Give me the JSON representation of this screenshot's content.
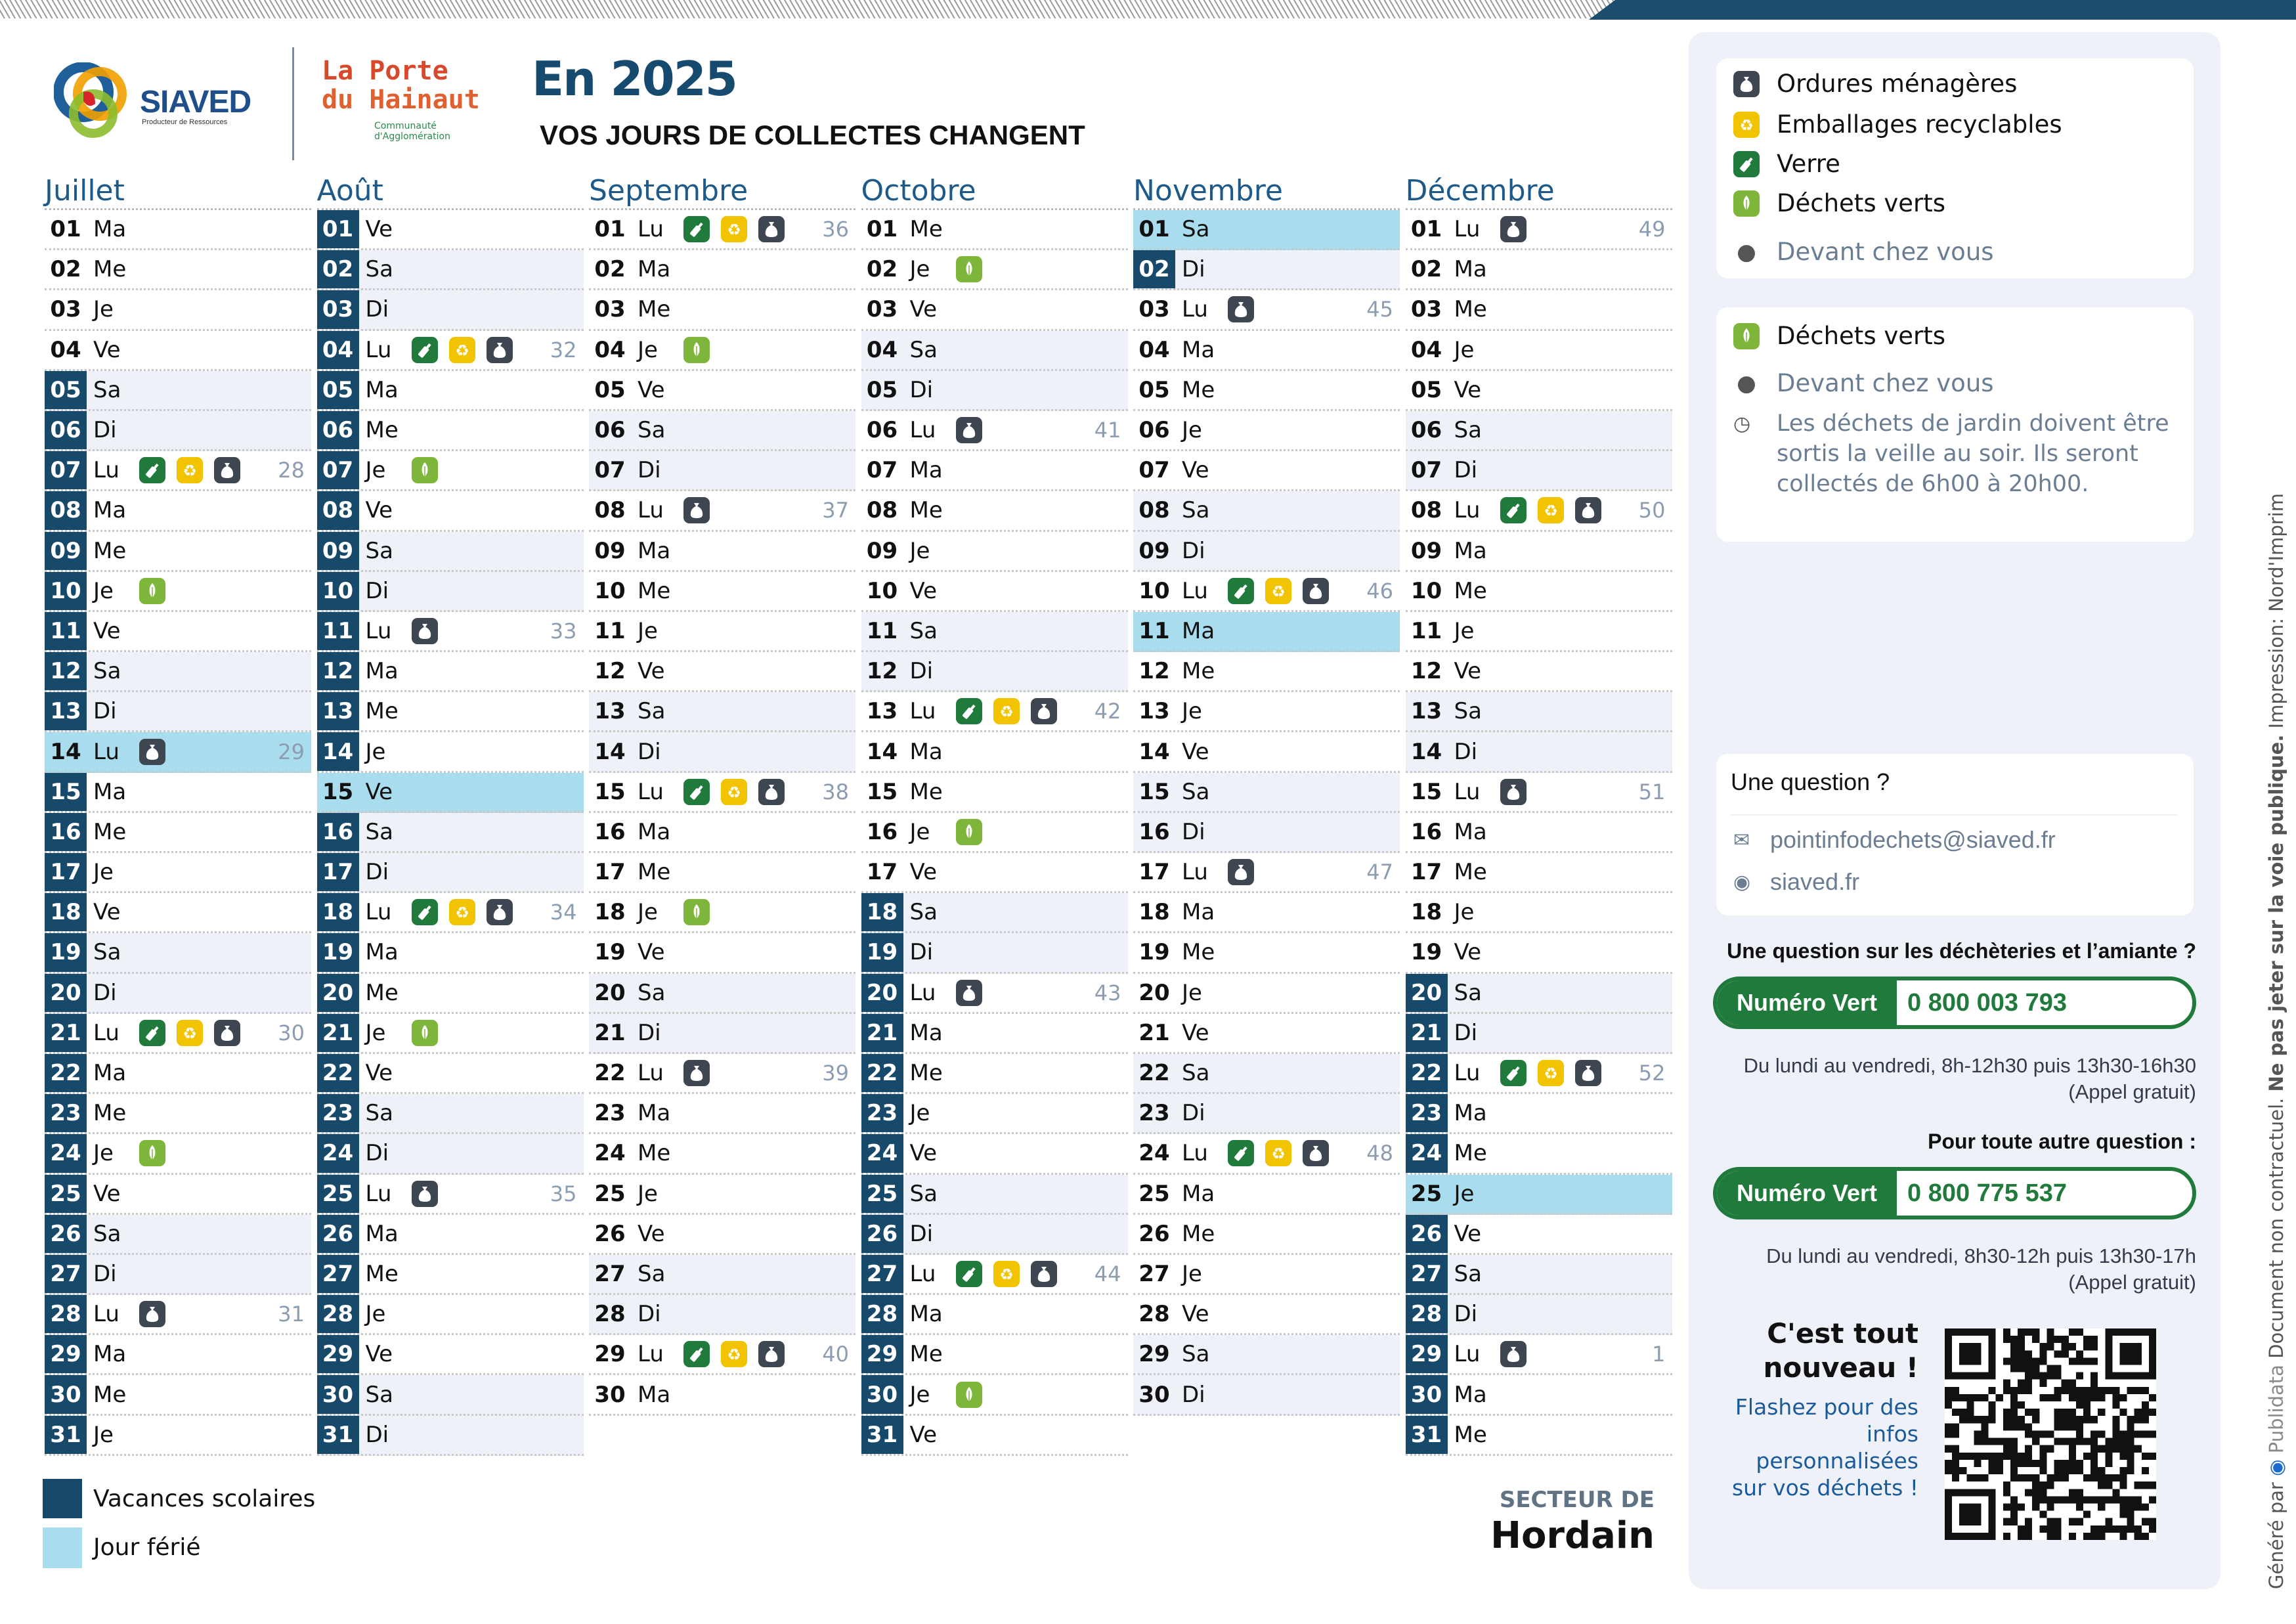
{
  "header": {
    "siaved_logo": {
      "name": "SIAVED",
      "tagline": "Producteur de Ressources"
    },
    "agglo_logo": {
      "line1": "La Porte",
      "line2": "du Hainaut",
      "sub1": "Communauté",
      "sub2": "d'Agglomération"
    },
    "title": "En 2025",
    "subtitle": "VOS JOURS DE COLLECTES CHANGENT"
  },
  "colors": {
    "vacation": "#17496b",
    "holiday": "#a9dcec",
    "weekend": "#eef2f8",
    "verre": "#1f7a3c",
    "emballages": "#f2c300",
    "ordures": "#3e4652",
    "dechets_verts": "#7db63a",
    "month_title": "#1d5a8a"
  },
  "icons": {
    "ordures": "bag-icon",
    "emballages": "recycle-icon",
    "verre": "bottle-icon",
    "dechets_verts": "leaf-icon",
    "location": "map-pin-icon",
    "clock": "clock-icon",
    "mail": "mail-icon",
    "web": "globe-icon"
  },
  "months": [
    {
      "name": "Juillet",
      "days": [
        {
          "d": "01",
          "w": "Ma"
        },
        {
          "d": "02",
          "w": "Me"
        },
        {
          "d": "03",
          "w": "Je"
        },
        {
          "d": "04",
          "w": "Ve"
        },
        {
          "d": "05",
          "w": "Sa",
          "v": 1
        },
        {
          "d": "06",
          "w": "Di",
          "v": 1
        },
        {
          "d": "07",
          "w": "Lu",
          "v": 1,
          "c": [
            "verre",
            "emballages",
            "ordures"
          ],
          "wk": "28"
        },
        {
          "d": "08",
          "w": "Ma",
          "v": 1
        },
        {
          "d": "09",
          "w": "Me",
          "v": 1
        },
        {
          "d": "10",
          "w": "Je",
          "v": 1,
          "c": [
            "dechets_verts"
          ]
        },
        {
          "d": "11",
          "w": "Ve",
          "v": 1
        },
        {
          "d": "12",
          "w": "Sa",
          "v": 1
        },
        {
          "d": "13",
          "w": "Di",
          "v": 1
        },
        {
          "d": "14",
          "w": "Lu",
          "h": 1,
          "c": [
            "ordures"
          ],
          "wk": "29"
        },
        {
          "d": "15",
          "w": "Ma",
          "v": 1
        },
        {
          "d": "16",
          "w": "Me",
          "v": 1
        },
        {
          "d": "17",
          "w": "Je",
          "v": 1
        },
        {
          "d": "18",
          "w": "Ve",
          "v": 1
        },
        {
          "d": "19",
          "w": "Sa",
          "v": 1
        },
        {
          "d": "20",
          "w": "Di",
          "v": 1
        },
        {
          "d": "21",
          "w": "Lu",
          "v": 1,
          "c": [
            "verre",
            "emballages",
            "ordures"
          ],
          "wk": "30"
        },
        {
          "d": "22",
          "w": "Ma",
          "v": 1
        },
        {
          "d": "23",
          "w": "Me",
          "v": 1
        },
        {
          "d": "24",
          "w": "Je",
          "v": 1,
          "c": [
            "dechets_verts"
          ]
        },
        {
          "d": "25",
          "w": "Ve",
          "v": 1
        },
        {
          "d": "26",
          "w": "Sa",
          "v": 1
        },
        {
          "d": "27",
          "w": "Di",
          "v": 1
        },
        {
          "d": "28",
          "w": "Lu",
          "v": 1,
          "c": [
            "ordures"
          ],
          "wk": "31"
        },
        {
          "d": "29",
          "w": "Ma",
          "v": 1
        },
        {
          "d": "30",
          "w": "Me",
          "v": 1
        },
        {
          "d": "31",
          "w": "Je",
          "v": 1
        }
      ]
    },
    {
      "name": "Août",
      "days": [
        {
          "d": "01",
          "w": "Ve",
          "v": 1
        },
        {
          "d": "02",
          "w": "Sa",
          "v": 1
        },
        {
          "d": "03",
          "w": "Di",
          "v": 1
        },
        {
          "d": "04",
          "w": "Lu",
          "v": 1,
          "c": [
            "verre",
            "emballages",
            "ordures"
          ],
          "wk": "32"
        },
        {
          "d": "05",
          "w": "Ma",
          "v": 1
        },
        {
          "d": "06",
          "w": "Me",
          "v": 1
        },
        {
          "d": "07",
          "w": "Je",
          "v": 1,
          "c": [
            "dechets_verts"
          ]
        },
        {
          "d": "08",
          "w": "Ve",
          "v": 1
        },
        {
          "d": "09",
          "w": "Sa",
          "v": 1
        },
        {
          "d": "10",
          "w": "Di",
          "v": 1
        },
        {
          "d": "11",
          "w": "Lu",
          "v": 1,
          "c": [
            "ordures"
          ],
          "wk": "33"
        },
        {
          "d": "12",
          "w": "Ma",
          "v": 1
        },
        {
          "d": "13",
          "w": "Me",
          "v": 1
        },
        {
          "d": "14",
          "w": "Je",
          "v": 1
        },
        {
          "d": "15",
          "w": "Ve",
          "h": 1
        },
        {
          "d": "16",
          "w": "Sa",
          "v": 1
        },
        {
          "d": "17",
          "w": "Di",
          "v": 1
        },
        {
          "d": "18",
          "w": "Lu",
          "v": 1,
          "c": [
            "verre",
            "emballages",
            "ordures"
          ],
          "wk": "34"
        },
        {
          "d": "19",
          "w": "Ma",
          "v": 1
        },
        {
          "d": "20",
          "w": "Me",
          "v": 1
        },
        {
          "d": "21",
          "w": "Je",
          "v": 1,
          "c": [
            "dechets_verts"
          ]
        },
        {
          "d": "22",
          "w": "Ve",
          "v": 1
        },
        {
          "d": "23",
          "w": "Sa",
          "v": 1
        },
        {
          "d": "24",
          "w": "Di",
          "v": 1
        },
        {
          "d": "25",
          "w": "Lu",
          "v": 1,
          "c": [
            "ordures"
          ],
          "wk": "35"
        },
        {
          "d": "26",
          "w": "Ma",
          "v": 1
        },
        {
          "d": "27",
          "w": "Me",
          "v": 1
        },
        {
          "d": "28",
          "w": "Je",
          "v": 1
        },
        {
          "d": "29",
          "w": "Ve",
          "v": 1
        },
        {
          "d": "30",
          "w": "Sa",
          "v": 1
        },
        {
          "d": "31",
          "w": "Di",
          "v": 1
        }
      ]
    },
    {
      "name": "Septembre",
      "days": [
        {
          "d": "01",
          "w": "Lu",
          "c": [
            "verre",
            "emballages",
            "ordures"
          ],
          "wk": "36"
        },
        {
          "d": "02",
          "w": "Ma"
        },
        {
          "d": "03",
          "w": "Me"
        },
        {
          "d": "04",
          "w": "Je",
          "c": [
            "dechets_verts"
          ]
        },
        {
          "d": "05",
          "w": "Ve"
        },
        {
          "d": "06",
          "w": "Sa"
        },
        {
          "d": "07",
          "w": "Di"
        },
        {
          "d": "08",
          "w": "Lu",
          "c": [
            "ordures"
          ],
          "wk": "37"
        },
        {
          "d": "09",
          "w": "Ma"
        },
        {
          "d": "10",
          "w": "Me"
        },
        {
          "d": "11",
          "w": "Je"
        },
        {
          "d": "12",
          "w": "Ve"
        },
        {
          "d": "13",
          "w": "Sa"
        },
        {
          "d": "14",
          "w": "Di"
        },
        {
          "d": "15",
          "w": "Lu",
          "c": [
            "verre",
            "emballages",
            "ordures"
          ],
          "wk": "38"
        },
        {
          "d": "16",
          "w": "Ma"
        },
        {
          "d": "17",
          "w": "Me"
        },
        {
          "d": "18",
          "w": "Je",
          "c": [
            "dechets_verts"
          ]
        },
        {
          "d": "19",
          "w": "Ve"
        },
        {
          "d": "20",
          "w": "Sa"
        },
        {
          "d": "21",
          "w": "Di"
        },
        {
          "d": "22",
          "w": "Lu",
          "c": [
            "ordures"
          ],
          "wk": "39"
        },
        {
          "d": "23",
          "w": "Ma"
        },
        {
          "d": "24",
          "w": "Me"
        },
        {
          "d": "25",
          "w": "Je"
        },
        {
          "d": "26",
          "w": "Ve"
        },
        {
          "d": "27",
          "w": "Sa"
        },
        {
          "d": "28",
          "w": "Di"
        },
        {
          "d": "29",
          "w": "Lu",
          "c": [
            "verre",
            "emballages",
            "ordures"
          ],
          "wk": "40"
        },
        {
          "d": "30",
          "w": "Ma"
        }
      ]
    },
    {
      "name": "Octobre",
      "days": [
        {
          "d": "01",
          "w": "Me"
        },
        {
          "d": "02",
          "w": "Je",
          "c": [
            "dechets_verts"
          ]
        },
        {
          "d": "03",
          "w": "Ve"
        },
        {
          "d": "04",
          "w": "Sa"
        },
        {
          "d": "05",
          "w": "Di"
        },
        {
          "d": "06",
          "w": "Lu",
          "c": [
            "ordures"
          ],
          "wk": "41"
        },
        {
          "d": "07",
          "w": "Ma"
        },
        {
          "d": "08",
          "w": "Me"
        },
        {
          "d": "09",
          "w": "Je"
        },
        {
          "d": "10",
          "w": "Ve"
        },
        {
          "d": "11",
          "w": "Sa"
        },
        {
          "d": "12",
          "w": "Di"
        },
        {
          "d": "13",
          "w": "Lu",
          "c": [
            "verre",
            "emballages",
            "ordures"
          ],
          "wk": "42"
        },
        {
          "d": "14",
          "w": "Ma"
        },
        {
          "d": "15",
          "w": "Me"
        },
        {
          "d": "16",
          "w": "Je",
          "c": [
            "dechets_verts"
          ]
        },
        {
          "d": "17",
          "w": "Ve"
        },
        {
          "d": "18",
          "w": "Sa",
          "v": 1
        },
        {
          "d": "19",
          "w": "Di",
          "v": 1
        },
        {
          "d": "20",
          "w": "Lu",
          "v": 1,
          "c": [
            "ordures"
          ],
          "wk": "43"
        },
        {
          "d": "21",
          "w": "Ma",
          "v": 1
        },
        {
          "d": "22",
          "w": "Me",
          "v": 1
        },
        {
          "d": "23",
          "w": "Je",
          "v": 1
        },
        {
          "d": "24",
          "w": "Ve",
          "v": 1
        },
        {
          "d": "25",
          "w": "Sa",
          "v": 1
        },
        {
          "d": "26",
          "w": "Di",
          "v": 1
        },
        {
          "d": "27",
          "w": "Lu",
          "v": 1,
          "c": [
            "verre",
            "emballages",
            "ordures"
          ],
          "wk": "44"
        },
        {
          "d": "28",
          "w": "Ma",
          "v": 1
        },
        {
          "d": "29",
          "w": "Me",
          "v": 1
        },
        {
          "d": "30",
          "w": "Je",
          "v": 1,
          "c": [
            "dechets_verts"
          ]
        },
        {
          "d": "31",
          "w": "Ve",
          "v": 1
        }
      ]
    },
    {
      "name": "Novembre",
      "days": [
        {
          "d": "01",
          "w": "Sa",
          "h": 1
        },
        {
          "d": "02",
          "w": "Di",
          "v": 1
        },
        {
          "d": "03",
          "w": "Lu",
          "c": [
            "ordures"
          ],
          "wk": "45"
        },
        {
          "d": "04",
          "w": "Ma"
        },
        {
          "d": "05",
          "w": "Me"
        },
        {
          "d": "06",
          "w": "Je"
        },
        {
          "d": "07",
          "w": "Ve"
        },
        {
          "d": "08",
          "w": "Sa"
        },
        {
          "d": "09",
          "w": "Di"
        },
        {
          "d": "10",
          "w": "Lu",
          "c": [
            "verre",
            "emballages",
            "ordures"
          ],
          "wk": "46"
        },
        {
          "d": "11",
          "w": "Ma",
          "h": 1
        },
        {
          "d": "12",
          "w": "Me"
        },
        {
          "d": "13",
          "w": "Je"
        },
        {
          "d": "14",
          "w": "Ve"
        },
        {
          "d": "15",
          "w": "Sa"
        },
        {
          "d": "16",
          "w": "Di"
        },
        {
          "d": "17",
          "w": "Lu",
          "c": [
            "ordures"
          ],
          "wk": "47"
        },
        {
          "d": "18",
          "w": "Ma"
        },
        {
          "d": "19",
          "w": "Me"
        },
        {
          "d": "20",
          "w": "Je"
        },
        {
          "d": "21",
          "w": "Ve"
        },
        {
          "d": "22",
          "w": "Sa"
        },
        {
          "d": "23",
          "w": "Di"
        },
        {
          "d": "24",
          "w": "Lu",
          "c": [
            "verre",
            "emballages",
            "ordures"
          ],
          "wk": "48"
        },
        {
          "d": "25",
          "w": "Ma"
        },
        {
          "d": "26",
          "w": "Me"
        },
        {
          "d": "27",
          "w": "Je"
        },
        {
          "d": "28",
          "w": "Ve"
        },
        {
          "d": "29",
          "w": "Sa"
        },
        {
          "d": "30",
          "w": "Di"
        }
      ]
    },
    {
      "name": "Décembre",
      "days": [
        {
          "d": "01",
          "w": "Lu",
          "c": [
            "ordures"
          ],
          "wk": "49"
        },
        {
          "d": "02",
          "w": "Ma"
        },
        {
          "d": "03",
          "w": "Me"
        },
        {
          "d": "04",
          "w": "Je"
        },
        {
          "d": "05",
          "w": "Ve"
        },
        {
          "d": "06",
          "w": "Sa"
        },
        {
          "d": "07",
          "w": "Di"
        },
        {
          "d": "08",
          "w": "Lu",
          "c": [
            "verre",
            "emballages",
            "ordures"
          ],
          "wk": "50"
        },
        {
          "d": "09",
          "w": "Ma"
        },
        {
          "d": "10",
          "w": "Me"
        },
        {
          "d": "11",
          "w": "Je"
        },
        {
          "d": "12",
          "w": "Ve"
        },
        {
          "d": "13",
          "w": "Sa"
        },
        {
          "d": "14",
          "w": "Di"
        },
        {
          "d": "15",
          "w": "Lu",
          "c": [
            "ordures"
          ],
          "wk": "51"
        },
        {
          "d": "16",
          "w": "Ma"
        },
        {
          "d": "17",
          "w": "Me"
        },
        {
          "d": "18",
          "w": "Je"
        },
        {
          "d": "19",
          "w": "Ve"
        },
        {
          "d": "20",
          "w": "Sa",
          "v": 1
        },
        {
          "d": "21",
          "w": "Di",
          "v": 1
        },
        {
          "d": "22",
          "w": "Lu",
          "v": 1,
          "c": [
            "verre",
            "emballages",
            "ordures"
          ],
          "wk": "52"
        },
        {
          "d": "23",
          "w": "Ma",
          "v": 1
        },
        {
          "d": "24",
          "w": "Me",
          "v": 1
        },
        {
          "d": "25",
          "w": "Je",
          "h": 1
        },
        {
          "d": "26",
          "w": "Ve",
          "v": 1
        },
        {
          "d": "27",
          "w": "Sa",
          "v": 1
        },
        {
          "d": "28",
          "w": "Di",
          "v": 1
        },
        {
          "d": "29",
          "w": "Lu",
          "v": 1,
          "c": [
            "ordures"
          ],
          "wk": "1"
        },
        {
          "d": "30",
          "w": "Ma",
          "v": 1
        },
        {
          "d": "31",
          "w": "Me",
          "v": 1
        }
      ]
    }
  ],
  "legend": {
    "vacation": "Vacances scolaires",
    "holiday": "Jour férié"
  },
  "sector": {
    "label": "SECTEUR DE",
    "name": "Hordain"
  },
  "panel": {
    "collection_types": {
      "ordures": "Ordures ménagères",
      "emballages": "Emballages recyclables",
      "verre": "Verre",
      "dechets_verts": "Déchets verts",
      "location": "Devant chez vous"
    },
    "green_waste": {
      "title": "Déchets verts",
      "location": "Devant chez vous",
      "note": "Les déchets de jardin doivent être sortis la veille au soir. Ils seront collectés de 6h00 à 20h00."
    },
    "contact": {
      "title": "Une question ?",
      "email": "pointinfodechets@siaved.fr",
      "website": "siaved.fr"
    },
    "hotline1": {
      "heading": "Une question sur les déchèteries et l’amiante ?",
      "label": "Numéro Vert",
      "number": "0 800 003 793",
      "hours": "Du lundi au vendredi, 8h-12h30 puis 13h30-16h30",
      "note": "(Appel gratuit)"
    },
    "hotline2": {
      "heading": "Pour toute autre question :",
      "label": "Numéro Vert",
      "number": "0 800 775 537",
      "hours": "Du lundi au vendredi, 8h30-12h puis 13h30-17h",
      "note": "(Appel gratuit)"
    },
    "qr": {
      "title1": "C'est tout",
      "title2": "nouveau !",
      "text1": "Flashez pour des",
      "text2": "infos",
      "text3": "personnalisées",
      "text4": "sur vos déchets !"
    }
  },
  "side_text": {
    "generated": "Généré par",
    "brand": "Publidata",
    "disclaimer": "Document non contractuel.",
    "warning": "Ne pas jeter sur la voie publique.",
    "print": "Impression: Nord'Imprim"
  }
}
